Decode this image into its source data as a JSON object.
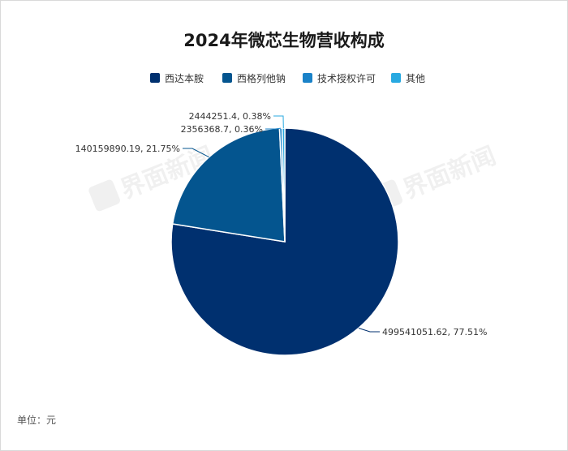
{
  "footnote": "单位：元",
  "watermark": "界面新闻",
  "colors": {
    "background": "#ffffff",
    "series": [
      "#00306f",
      "#04558f",
      "#1a82c8",
      "#28a9e1"
    ]
  },
  "chart_data": {
    "type": "pie",
    "title": "2024年微芯生物营收构成",
    "unit": "元",
    "legend_position": "top",
    "slices": [
      {
        "name": "西达本胺",
        "value": 499541051.62,
        "percent": 77.51,
        "label": "499541051.62, 77.51%"
      },
      {
        "name": "西格列他钠",
        "value": 140159890.19,
        "percent": 21.75,
        "label": "140159890.19, 21.75%"
      },
      {
        "name": "技术授权许可",
        "value": 2356368.7,
        "percent": 0.36,
        "label": "2356368.7, 0.36%"
      },
      {
        "name": "其他",
        "value": 2444251.4,
        "percent": 0.38,
        "label": "2444251.4, 0.38%"
      }
    ]
  }
}
